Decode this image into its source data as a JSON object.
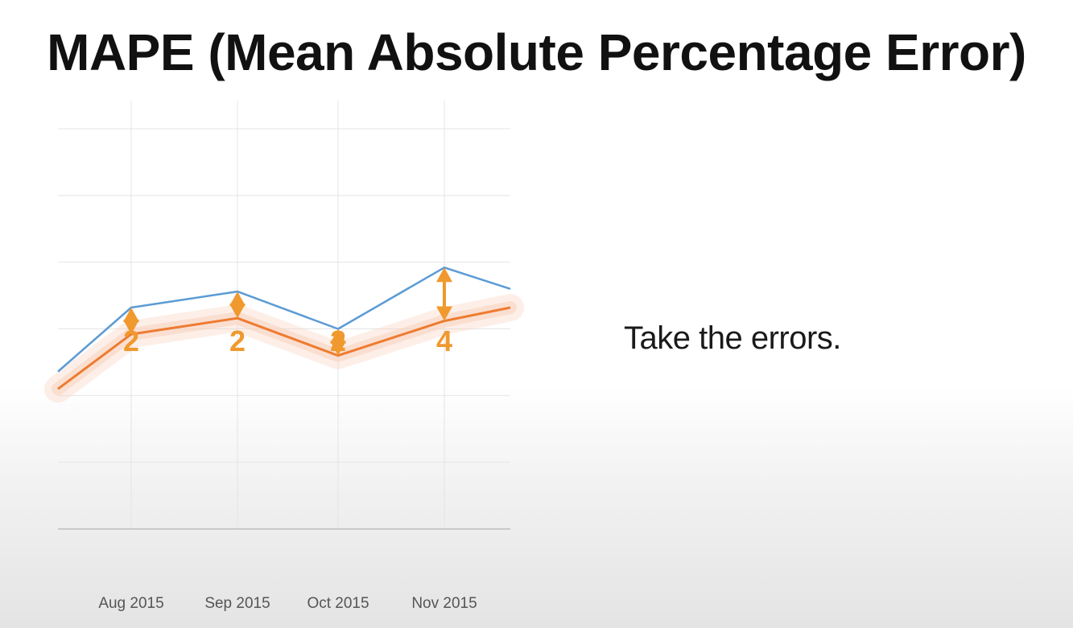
{
  "slide": {
    "title": "MAPE (Mean Absolute Percentage Error)",
    "caption": "Take the errors."
  },
  "colors": {
    "actual": "#5b9bd5",
    "forecast": "#ee7b30",
    "forecast_band": "#f8d2bd",
    "error_arrow": "#f0992e",
    "error_label": "#f0992e",
    "grid": "#e4e4e4",
    "axis": "#bdbdbd",
    "tick_text": "#555555"
  },
  "chart_data": {
    "type": "line",
    "x": [
      "",
      "Aug 2015",
      "Sep 2015",
      "Oct 2015",
      "Nov 2015",
      ""
    ],
    "categories": [
      "Aug 2015",
      "Sep 2015",
      "Oct 2015",
      "Nov 2015"
    ],
    "series": [
      {
        "key": "actual",
        "values": [
          11.8,
          16.6,
          17.8,
          15.0,
          19.6,
          18.0
        ]
      },
      {
        "key": "forecast",
        "values": [
          10.5,
          14.6,
          15.8,
          13.0,
          15.6,
          16.6
        ]
      }
    ],
    "errors": [
      2,
      2,
      2,
      4
    ],
    "ylim": [
      0,
      30
    ],
    "grid": true,
    "legend": "none"
  }
}
